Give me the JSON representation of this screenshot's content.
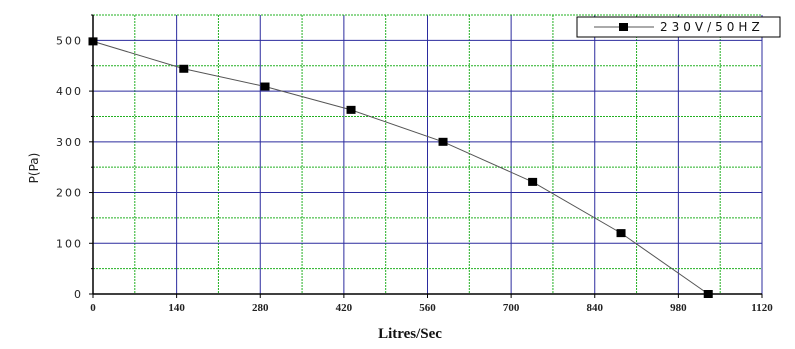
{
  "chart_data": {
    "type": "line",
    "title": "",
    "xlabel": "Litres/Sec",
    "ylabel": "P(Pa)",
    "xlim": [
      0,
      1120
    ],
    "ylim": [
      0,
      550
    ],
    "x_ticks": [
      "0",
      "140",
      "280",
      "420",
      "560",
      "700",
      "840",
      "980",
      "1120"
    ],
    "y_ticks": [
      "0",
      "100",
      "200",
      "300",
      "400",
      "500"
    ],
    "grid": true,
    "legend_position": "top-right",
    "series": [
      {
        "name": "230V/50HZ",
        "x": [
          0,
          152,
          288,
          432,
          586,
          736,
          884,
          1030
        ],
        "y": [
          498,
          444,
          409,
          363,
          300,
          221,
          120,
          0
        ],
        "marker": "square",
        "line_color": "#555555",
        "marker_color": "#000000"
      }
    ],
    "colors": {
      "major_grid": "#2b2b9e",
      "minor_grid": "#22b022",
      "axis": "#000000"
    }
  }
}
